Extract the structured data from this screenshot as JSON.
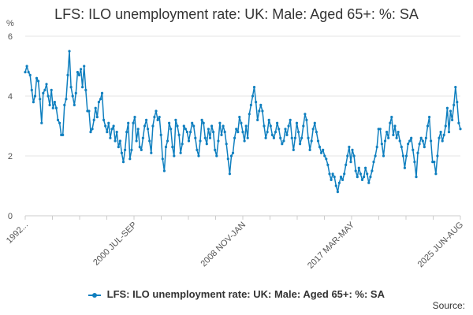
{
  "chart_data": {
    "type": "line",
    "title": "LFS: ILO unemployment rate: UK: Male: Aged 65+: %: SA",
    "y_unit": "%",
    "xlabel": "",
    "ylabel": "",
    "ylim": [
      0,
      6
    ],
    "y_ticks": [
      0,
      2,
      4,
      6
    ],
    "x_ticks": [
      "1992...",
      "2000 JUL-SEP",
      "2008 NOV-JAN",
      "2017 MAR-MAY",
      "2025 JUN-AUG"
    ],
    "grid": true,
    "legend_position": "bottom",
    "series_color": "#0f7fbf",
    "series": [
      {
        "name": "LFS: ILO unemployment rate: UK: Male: Aged 65+: %: SA",
        "values": [
          4.8,
          5.0,
          4.8,
          4.7,
          4.2,
          3.8,
          4.0,
          4.6,
          4.5,
          3.9,
          3.1,
          4.1,
          4.2,
          4.4,
          4.0,
          3.7,
          4.2,
          3.6,
          3.8,
          3.6,
          3.2,
          3.1,
          2.7,
          2.7,
          3.7,
          3.9,
          4.7,
          5.5,
          4.3,
          4.0,
          3.7,
          4.1,
          4.8,
          4.7,
          4.9,
          4.3,
          5.0,
          4.2,
          3.5,
          3.5,
          2.8,
          2.9,
          3.2,
          3.6,
          3.3,
          3.8,
          3.9,
          4.1,
          3.2,
          3.0,
          2.8,
          3.1,
          2.6,
          2.9,
          3.0,
          2.5,
          2.8,
          2.3,
          2.5,
          2.1,
          1.8,
          2.2,
          2.8,
          3.1,
          1.9,
          2.2,
          3.1,
          3.3,
          2.5,
          2.9,
          2.3,
          2.2,
          2.6,
          3.0,
          3.2,
          2.9,
          2.5,
          2.1,
          3.0,
          3.3,
          3.5,
          3.2,
          3.3,
          2.7,
          1.9,
          1.5,
          2.3,
          2.5,
          3.1,
          2.9,
          2.3,
          2.0,
          3.2,
          3.0,
          2.7,
          2.1,
          2.4,
          3.0,
          2.9,
          2.8,
          2.5,
          2.8,
          3.1,
          3.0,
          2.6,
          2.2,
          2.0,
          2.5,
          3.2,
          3.1,
          2.6,
          2.4,
          2.9,
          2.6,
          3.0,
          2.8,
          2.2,
          2.0,
          2.5,
          3.1,
          2.7,
          3.0,
          2.8,
          2.4,
          1.9,
          1.4,
          2.0,
          2.1,
          2.6,
          2.9,
          2.8,
          3.3,
          3.1,
          2.8,
          2.5,
          3.0,
          2.6,
          3.4,
          3.7,
          4.0,
          4.3,
          3.8,
          3.2,
          3.5,
          3.7,
          3.5,
          3.0,
          2.6,
          2.8,
          3.2,
          3.0,
          2.7,
          2.6,
          2.8,
          3.1,
          2.9,
          2.6,
          2.4,
          2.5,
          2.9,
          2.7,
          3.0,
          3.2,
          2.6,
          2.2,
          2.6,
          3.1,
          2.8,
          2.4,
          2.6,
          3.0,
          3.4,
          3.2,
          2.6,
          2.2,
          2.5,
          2.9,
          3.1,
          2.8,
          2.5,
          2.3,
          2.1,
          2.2,
          2.0,
          1.9,
          1.7,
          1.4,
          1.2,
          1.4,
          1.3,
          1.0,
          0.8,
          1.1,
          1.3,
          1.2,
          1.4,
          1.7,
          2.0,
          2.3,
          1.8,
          2.2,
          2.0,
          1.5,
          1.3,
          1.6,
          1.4,
          1.2,
          1.3,
          1.6,
          1.4,
          1.1,
          1.3,
          1.5,
          1.8,
          2.0,
          2.3,
          2.9,
          2.9,
          2.4,
          2.0,
          2.5,
          2.8,
          2.6,
          3.1,
          3.3,
          2.7,
          3.0,
          2.6,
          2.8,
          2.5,
          2.3,
          2.0,
          1.6,
          2.0,
          2.4,
          2.5,
          2.6,
          2.2,
          1.8,
          1.3,
          2.1,
          2.4,
          2.6,
          2.5,
          2.3,
          2.6,
          3.0,
          3.3,
          2.5,
          1.8,
          1.8,
          1.4,
          2.0,
          2.6,
          2.8,
          2.5,
          2.7,
          3.0,
          3.6,
          2.8,
          3.5,
          3.2,
          3.7,
          4.3,
          3.8,
          3.1,
          2.9
        ]
      }
    ]
  },
  "footer": {
    "source_label": "Source:"
  }
}
